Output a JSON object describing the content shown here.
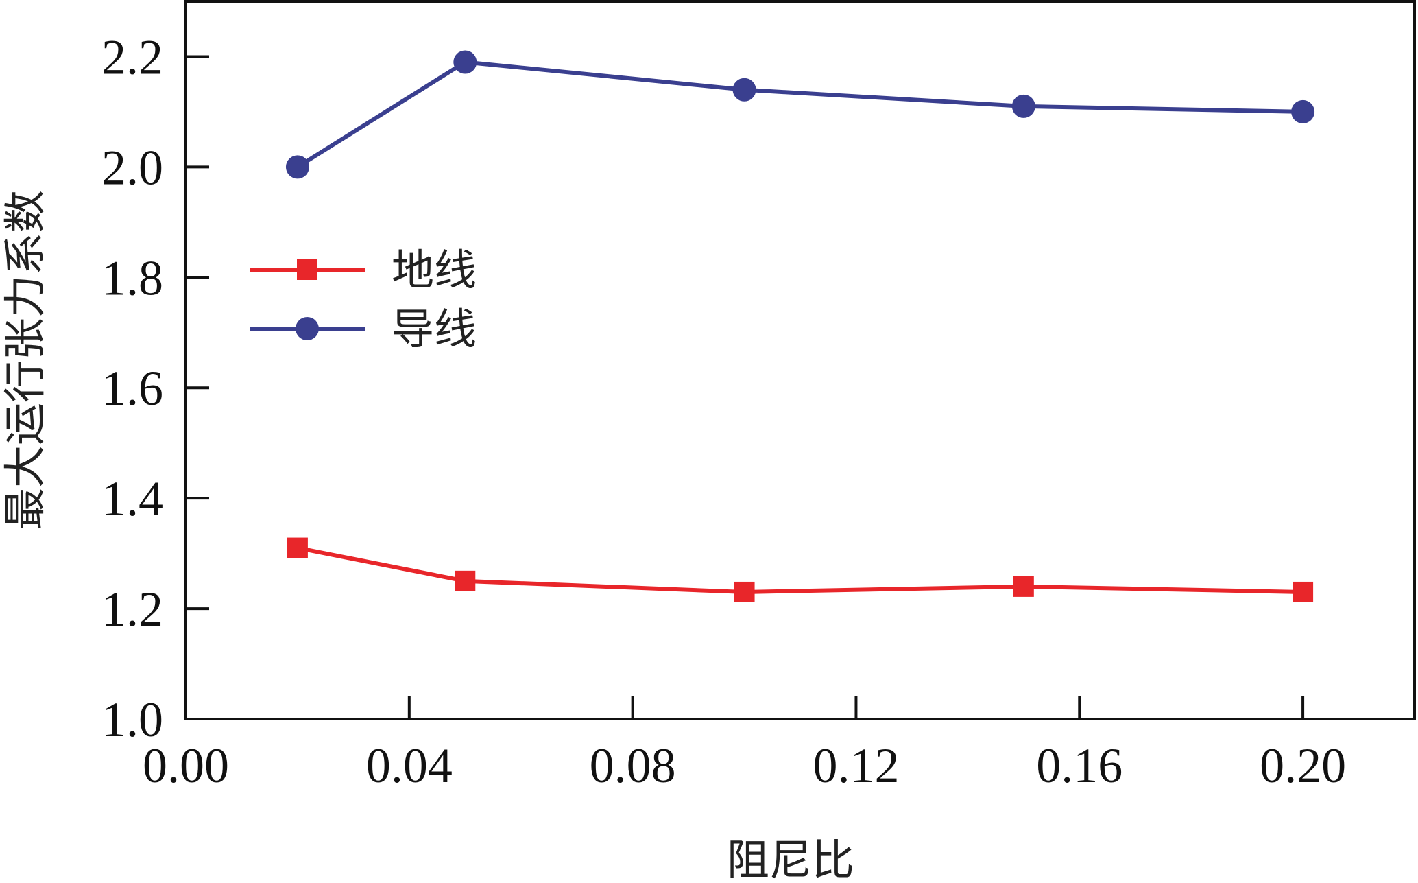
{
  "chart_data": {
    "type": "line",
    "xlabel": "阻尼比",
    "ylabel": "最大运行张力系数",
    "xlim": [
      0.0,
      0.22
    ],
    "ylim": [
      1.0,
      2.3
    ],
    "xticks": [
      0.0,
      0.04,
      0.08,
      0.12,
      0.16,
      0.2
    ],
    "xtick_labels": [
      "0.00",
      "0.04",
      "0.08",
      "0.12",
      "0.16",
      "0.20"
    ],
    "yticks": [
      1.0,
      1.2,
      1.4,
      1.6,
      1.8,
      2.0,
      2.2
    ],
    "ytick_labels": [
      "1.0",
      "1.2",
      "1.4",
      "1.6",
      "1.8",
      "2.0",
      "2.2"
    ],
    "x": [
      0.02,
      0.05,
      0.1,
      0.15,
      0.2
    ],
    "series": [
      {
        "name": "地线",
        "values": [
          1.31,
          1.25,
          1.23,
          1.24,
          1.23
        ],
        "color": "#e8262a",
        "marker": "square"
      },
      {
        "name": "导线",
        "values": [
          2.0,
          2.19,
          2.14,
          2.11,
          2.1
        ],
        "color": "#3a3f8f",
        "marker": "circle"
      }
    ],
    "legend_position": "center-left",
    "grid": false
  }
}
